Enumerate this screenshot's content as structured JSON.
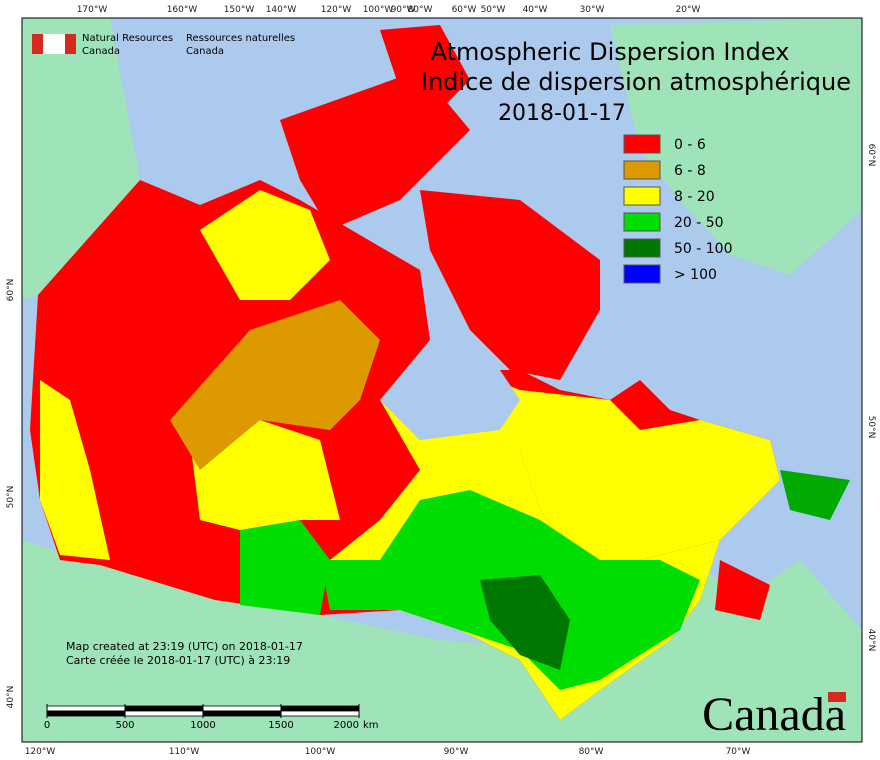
{
  "logo": {
    "en_line1": "Natural Resources",
    "en_line2": "Canada",
    "fr_line1": "Ressources naturelles",
    "fr_line2": "Canada"
  },
  "title": {
    "line1": "Atmospheric Dispersion Index",
    "line2": "Indice de dispersion atmosphérique",
    "date": "2018-01-17"
  },
  "legend": [
    {
      "label": "0 - 6",
      "color": "#ff0000"
    },
    {
      "label": "6 - 8",
      "color": "#dd9900"
    },
    {
      "label": "8 - 20",
      "color": "#ffff00"
    },
    {
      "label": "20 - 50",
      "color": "#00dd00"
    },
    {
      "label": "50 - 100",
      "color": "#007700"
    },
    {
      "label": "> 100",
      "color": "#0000ff"
    }
  ],
  "graticule": {
    "top": [
      "170°W",
      "160°W",
      "150°W",
      "140°W",
      "120°W",
      "100°W",
      "90°W",
      "80°W",
      "60°W",
      "50°W",
      "40°W",
      "30°W",
      "20°W"
    ],
    "bottom": [
      "120°W",
      "110°W",
      "100°W",
      "90°W",
      "80°W",
      "70°W"
    ],
    "left": [
      "60°N",
      "50°N",
      "40°N"
    ],
    "right": [
      "60°N",
      "50°N",
      "40°N"
    ]
  },
  "note": {
    "en": "Map created at 23:19 (UTC) on 2018-01-17",
    "fr": "Carte créée le 2018-01-17 (UTC) à 23:19"
  },
  "scale_bar": {
    "ticks": [
      0,
      500,
      1000,
      1500,
      2000
    ],
    "unit": "km"
  },
  "wordmark": "Canada"
}
